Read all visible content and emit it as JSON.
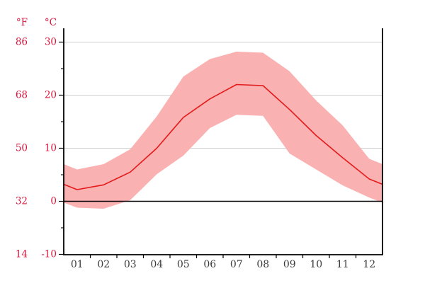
{
  "chart_data": {
    "type": "area",
    "title": "",
    "subtitle": "",
    "legend": "none",
    "x_tick_labels": [
      "01",
      "02",
      "03",
      "04",
      "05",
      "06",
      "07",
      "08",
      "09",
      "10",
      "11",
      "12"
    ],
    "y_axis": {
      "f_unit": "°F",
      "c_unit": "°C",
      "major_ticks": [
        {
          "f": "86",
          "c_label": "30",
          "c": 30
        },
        {
          "f": "68",
          "c_label": "20",
          "c": 20
        },
        {
          "f": "50",
          "c_label": "10",
          "c": 10
        },
        {
          "f": "32",
          "c_label": "0",
          "c": 0
        },
        {
          "f": "14",
          "c_label": "-10",
          "c": -10
        }
      ],
      "minor_ticks_c": [
        25,
        15,
        5,
        -5
      ],
      "ylim_c": [
        -10,
        32.6
      ],
      "gridlines_c": [
        30,
        20,
        10
      ],
      "zero_line_c": 0
    },
    "series": [
      {
        "name": "mean",
        "label": "mean temperature",
        "values": [
          2.2,
          3.1,
          5.5,
          10.0,
          15.8,
          19.3,
          22.0,
          21.8,
          17.3,
          12.4,
          8.2,
          4.2
        ]
      },
      {
        "name": "max",
        "label": "band upper edge",
        "values": [
          6.0,
          7.0,
          9.8,
          16.0,
          23.5,
          26.8,
          28.2,
          28.0,
          24.5,
          19.0,
          14.3,
          8.0
        ]
      },
      {
        "name": "min",
        "label": "band lower edge",
        "values": [
          -1.2,
          -1.4,
          0.2,
          5.1,
          8.6,
          13.8,
          16.3,
          16.1,
          9.0,
          6.0,
          3.0,
          0.7
        ]
      }
    ],
    "band_extends_to_plot_edges": true,
    "colors": {
      "mean_line": "#e31a1c",
      "band_fill": "#fab1b1",
      "y_label": "#dc143c",
      "month_label": "#3b3b3b",
      "gridline": "#cfcfcf",
      "axis": "#000000",
      "zero_line": "#000000",
      "background": "#ffffff"
    }
  }
}
